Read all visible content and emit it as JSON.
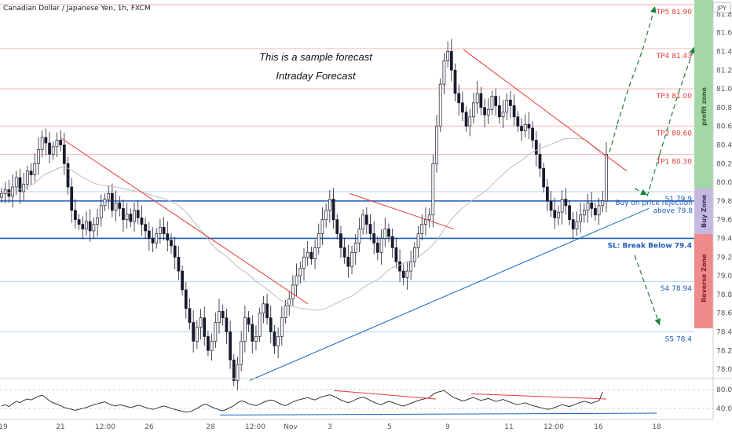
{
  "header": {
    "title": "Canadian Dollar / Japanese Yen, 1h, FXCM",
    "currency_badge": "JPY"
  },
  "colors": {
    "up_candle": "#ffffff",
    "down_candle": "#1a1a2e",
    "resistance_line": "#e53935",
    "support_line": "#1565c0",
    "level_red": "#ef9a9a",
    "level_blue": "#90caf9",
    "level_blue_strong": "#1e5bb8",
    "forecast_arrow": "#1b7f3a",
    "profit_zone": "#a5d6a7",
    "buy_zone": "#c5b8e0",
    "reverse_zone": "#ef8a8a",
    "ma_line": "#bdbdbd"
  },
  "chart_data": [
    {
      "type": "candlestick",
      "y_ticks": [
        "81.800",
        "81.600",
        "81.400",
        "81.200",
        "81.000",
        "80.800",
        "80.600",
        "80.400",
        "80.200",
        "80.000",
        "79.800",
        "79.600",
        "79.400",
        "79.200",
        "79.000",
        "78.800",
        "78.600",
        "78.400",
        "78.200",
        "78.000"
      ],
      "ylim": [
        77.9,
        81.95
      ],
      "x_ticks": [
        "19",
        "21",
        "12:00",
        "26",
        "28",
        "12:00",
        "Nov",
        "3",
        "5",
        "9",
        "11",
        "12:00",
        "16",
        "18"
      ],
      "series_close": [
        79.88,
        79.92,
        79.85,
        79.95,
        80.05,
        79.9,
        79.98,
        80.12,
        80.08,
        80.2,
        80.35,
        80.48,
        80.42,
        80.3,
        80.38,
        80.45,
        80.4,
        80.2,
        79.95,
        79.7,
        79.6,
        79.55,
        79.5,
        79.58,
        79.48,
        79.55,
        79.62,
        79.75,
        79.82,
        79.88,
        79.7,
        79.78,
        79.72,
        79.6,
        79.66,
        79.58,
        79.7,
        79.62,
        79.55,
        79.48,
        79.4,
        79.35,
        79.45,
        79.52,
        79.45,
        79.38,
        79.32,
        79.2,
        79.05,
        78.85,
        78.65,
        78.5,
        78.3,
        78.45,
        78.55,
        78.35,
        78.2,
        78.3,
        78.5,
        78.62,
        78.55,
        78.4,
        78.1,
        77.88,
        78.05,
        78.3,
        78.55,
        78.48,
        78.3,
        78.35,
        78.6,
        78.7,
        78.55,
        78.4,
        78.25,
        78.35,
        78.55,
        78.68,
        78.75,
        78.9,
        79.0,
        79.08,
        79.2,
        79.25,
        79.18,
        79.3,
        79.45,
        79.6,
        79.7,
        79.82,
        79.6,
        79.45,
        79.3,
        79.2,
        79.1,
        79.25,
        79.35,
        79.5,
        79.65,
        79.55,
        79.45,
        79.35,
        79.25,
        79.4,
        79.5,
        79.42,
        79.3,
        79.15,
        79.05,
        78.98,
        79.05,
        79.15,
        79.3,
        79.45,
        79.55,
        79.6,
        79.65,
        80.2,
        80.6,
        81.05,
        81.3,
        81.4,
        81.2,
        80.95,
        80.85,
        80.75,
        80.6,
        80.7,
        80.85,
        80.95,
        80.8,
        80.72,
        80.78,
        80.92,
        80.82,
        80.7,
        80.75,
        80.88,
        80.82,
        80.7,
        80.6,
        80.55,
        80.62,
        80.58,
        80.45,
        80.3,
        80.15,
        79.95,
        79.8,
        79.7,
        79.62,
        79.68,
        79.82,
        79.75,
        79.6,
        79.5,
        79.58,
        79.65,
        79.7,
        79.78,
        79.72,
        79.65,
        79.75,
        79.8,
        80.3
      ],
      "series_rsi": [
        45,
        48,
        44,
        50,
        55,
        52,
        57,
        60,
        58,
        62,
        66,
        68,
        63,
        56,
        52,
        49,
        46,
        42,
        40,
        38,
        36,
        38,
        40,
        42,
        45,
        48,
        50,
        52,
        54,
        50,
        47,
        45,
        48,
        46,
        44,
        42,
        44,
        47,
        45,
        42,
        40,
        38,
        40,
        43,
        45,
        43,
        40,
        38,
        36,
        34,
        32,
        33,
        36,
        40,
        45,
        49,
        47,
        43,
        40,
        37,
        35,
        38,
        42,
        46,
        52,
        56,
        54,
        50,
        48,
        46,
        49,
        53,
        56,
        58,
        56,
        52,
        48,
        46,
        50,
        54,
        57,
        59,
        61,
        63,
        60,
        58,
        62,
        65,
        67,
        69,
        66,
        62,
        58,
        55,
        52,
        55,
        59,
        62,
        64,
        61,
        57,
        53,
        50,
        48,
        52,
        55,
        53,
        50,
        47,
        45,
        48,
        51,
        54,
        57,
        59,
        61,
        63,
        70,
        74,
        76,
        78,
        72,
        66,
        62,
        59,
        56,
        58,
        61,
        63,
        60,
        57,
        59,
        61,
        58,
        55,
        57,
        59,
        56,
        53,
        50,
        48,
        50,
        52,
        49,
        46,
        44,
        42,
        40,
        38,
        39,
        42,
        45,
        48,
        46,
        44,
        47,
        50,
        53,
        55,
        53,
        51,
        54,
        56,
        75
      ],
      "rsi_ticks": [
        "80.00",
        "40.00"
      ],
      "rsi_ylim": [
        20,
        100
      ]
    }
  ],
  "levels": [
    {
      "label": "TP5 81.90",
      "value": 81.9,
      "color": "#e53935",
      "line": "#f4a6a6"
    },
    {
      "label": "TP4 81.43",
      "value": 81.43,
      "color": "#e53935",
      "line": "#f4a6a6"
    },
    {
      "label": "TP3 81.00",
      "value": 81.0,
      "color": "#e53935",
      "line": "#f4a6a6"
    },
    {
      "label": "TP2 80.60",
      "value": 80.6,
      "color": "#e53935",
      "line": "#f4a6a6"
    },
    {
      "label": "TP1 80.30",
      "value": 80.3,
      "color": "#e53935",
      "line": "#f4a6a6"
    },
    {
      "label": "S1 79.9",
      "value": 79.9,
      "color": "#1e5bb8",
      "line": "#9cc3ee"
    },
    {
      "label": "",
      "value": 79.8,
      "color": "#1e5bb8",
      "line": "#1e5bb8"
    },
    {
      "label": "SL: Break Below 79.4",
      "value": 79.4,
      "color": "#1e5bb8",
      "line": "#1e5bb8"
    },
    {
      "label": "S4 78.94",
      "value": 78.94,
      "color": "#1e5bb8",
      "line": "#9cc3ee"
    },
    {
      "label": "S5 78.4",
      "value": 78.4,
      "color": "#1e5bb8",
      "line": "#9cc3ee"
    }
  ],
  "annotations": {
    "note_line1": "This is a sample forecast",
    "note_line2": "Intraday Forecast",
    "buy_line1": "Buy on price rejection",
    "buy_line2": "above 79.8",
    "zone_profit": "profit zone",
    "zone_buy": "Buy Zone",
    "zone_reverse": "Reverse Zone"
  }
}
